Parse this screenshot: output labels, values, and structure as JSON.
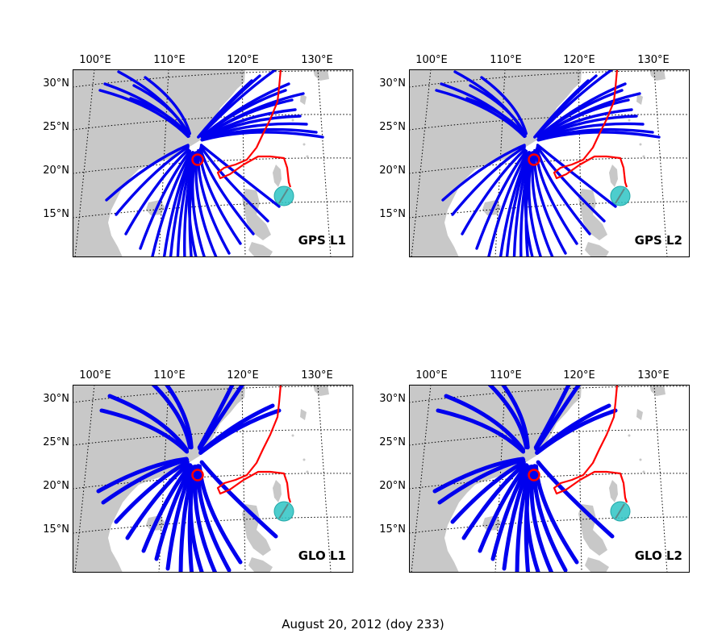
{
  "figure": {
    "caption": "August 20, 2012 (doy 233)",
    "colors": {
      "land": "#c8c8c8",
      "ocean": "#ffffff",
      "track": "#0000ee",
      "typhoon_track": "#ff0000",
      "station_marker": "#ff0000",
      "typhoon_marker": "#2ec4c4",
      "graticule": "#000000"
    },
    "icons": {
      "station": "red-circle-marker",
      "typhoon": "cyan-typhoon-marker"
    }
  },
  "maps": [
    {
      "id": "gps-l1",
      "label": "GPS L1",
      "lon_labels": [
        "100°E",
        "110°E",
        "120°E",
        "130°E"
      ],
      "lat_labels": [
        "30°N",
        "25°N",
        "20°N",
        "15°N"
      ]
    },
    {
      "id": "gps-l2",
      "label": "GPS L2",
      "lon_labels": [
        "100°E",
        "110°E",
        "120°E",
        "130°E"
      ],
      "lat_labels": [
        "30°N",
        "25°N",
        "20°N",
        "15°N"
      ]
    },
    {
      "id": "glo-l1",
      "label": "GLO L1",
      "lon_labels": [
        "100°E",
        "110°E",
        "120°E",
        "130°E"
      ],
      "lat_labels": [
        "30°N",
        "25°N",
        "20°N",
        "15°N"
      ]
    },
    {
      "id": "glo-l2",
      "label": "GLO L2",
      "lon_labels": [
        "100°E",
        "110°E",
        "120°E",
        "130°E"
      ],
      "lat_labels": [
        "30°N",
        "25°N",
        "20°N",
        "15°N"
      ]
    }
  ]
}
